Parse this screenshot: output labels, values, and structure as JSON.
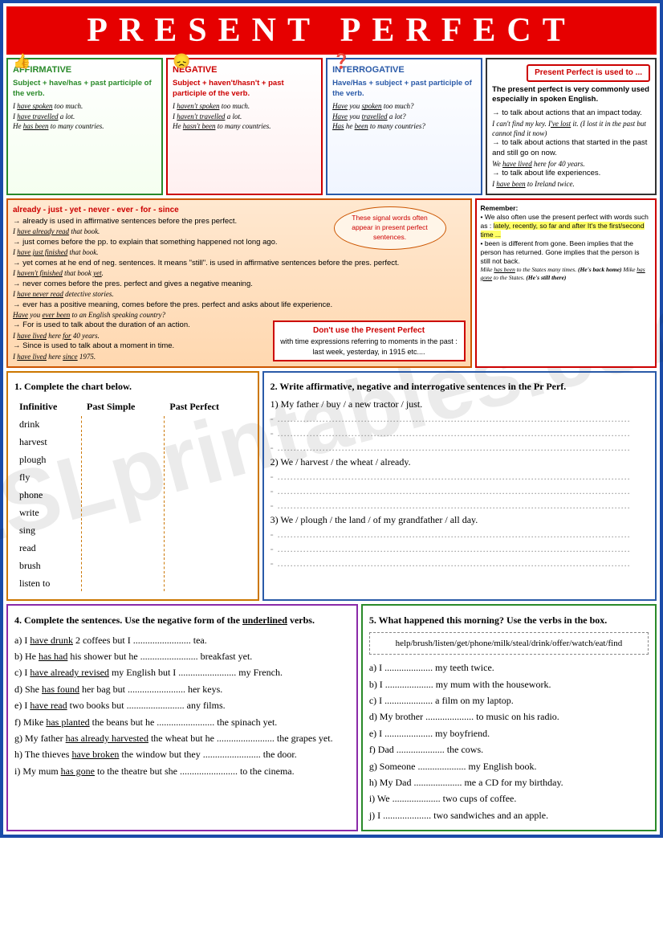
{
  "title": "PRESENT PERFECT",
  "forms": {
    "affirmative": {
      "header": "AFFIRMATIVE",
      "formula": "Subject + have/has + past participle of the verb.",
      "ex1": "I have spoken too much.",
      "ex2": "I have travelled a lot.",
      "ex3": "He has been to many countries.",
      "icon": "👍"
    },
    "negative": {
      "header": "NEGATIVE",
      "formula": "Subject + haven't/hasn't + past participle of the verb.",
      "ex1": "I haven't spoken too much.",
      "ex2": "I haven't travelled a lot.",
      "ex3": "He hasn't been to many countries.",
      "icon": "😞"
    },
    "interrogative": {
      "header": "INTERROGATIVE",
      "formula": "Have/Has + subject + past participle of the verb.",
      "ex1": "Have you spoken too much?",
      "ex2": "Have you travelled a lot?",
      "ex3": "Has he been to many countries?",
      "icon": "❓"
    }
  },
  "usage": {
    "pill": "Present Perfect is used to ...",
    "intro": "The present perfect is very commonly used especially in spoken English.",
    "u1": "→ to talk about actions that an impact today.",
    "u1ex": "I can't find my key. I've lost it. (I lost it in the past but cannot find it now)",
    "u2": "→ to talk about actions that started in the past and still go on now.",
    "u2ex": "We have lived here for 40 years.",
    "u3": "→ to talk about life experiences.",
    "u3ex": "I have been to Ireland twice."
  },
  "signal": {
    "title": "already - just - yet - never - ever - for - since",
    "l1": "→ already is used in affirmative sentences before the pres perfect.",
    "l1ex": "I have already read that book.",
    "l2": "→ just comes before the pp. to explain that something happened not long ago.",
    "l2ex": "I have just finished that book.",
    "l3": "→ yet comes at he end of neg. sentences. It means \"still\". is used in affirmative sentences before the pres. perfect.",
    "l3ex": "I haven't finished that book yet.",
    "l4": "→ never comes before the pres. perfect and gives a negative meaning.",
    "l4ex": "I have never read detective stories.",
    "l5": "→ ever has a positive meaning, comes before the pres. perfect and asks about life experience.",
    "l5ex": "Have you ever been to an English speaking country?",
    "l6": "→ For is used to talk about the duration of an action.",
    "l6ex": "I have lived here for 40 years.",
    "l7": "→ Since is used to talk about a moment in time.",
    "l7ex": "I have lived here since 1975.",
    "callout": "These signal words often appear in present perfect sentences."
  },
  "dont": {
    "title": "Don't use the Present Perfect",
    "text": "with time expressions referring to moments in the past : last week, yesterday, in 1915 etc...."
  },
  "remember": {
    "title": "Remember:",
    "l1": "• We also often use the present perfect with words such as : lately, recently, so far and after It's the first/second time ...",
    "l2": "• been is different from gone. Been implies that the person has returned. Gone implies that the person is still not back.",
    "l3a": "Mike has been to the States many times. (He's back home)",
    "l3b": "Mike has gone to the States. (He's still there)"
  },
  "ex1": {
    "title": "1. Complete the chart below.",
    "h1": "Infinitive",
    "h2": "Past Simple",
    "h3": "Past Perfect",
    "verbs": [
      "drink",
      "harvest",
      "plough",
      "fly",
      "phone",
      "write",
      "sing",
      "read",
      "brush",
      "listen to"
    ]
  },
  "ex2": {
    "title": "2. Write affirmative, negative and interrogative sentences in the Pr Perf.",
    "p1": "1) My father / buy / a new tractor / just.",
    "p2": "2) We / harvest / the wheat / already.",
    "p3": "3) We / plough / the land / of my grandfather / all day."
  },
  "ex4": {
    "title": "4. Complete the sentences. Use the negative form of the underlined verbs.",
    "a": "a) I have drunk 2 coffees but I ........................ tea.",
    "b": "b) He has had his shower but he ........................ breakfast yet.",
    "c": "c) I have already revised my English but I ........................ my French.",
    "d": "d) She has found her bag but ........................ her keys.",
    "e": "e) I have read two books but ........................ any films.",
    "f": "f) Mike has planted the beans but he ........................ the spinach yet.",
    "g": "g) My father has already harvested the wheat but he ........................ the grapes yet.",
    "h": "h) The thieves have broken the window but they ........................ the door.",
    "i": "i) My mum has gone to the theatre but she ........................ to the cinema."
  },
  "ex5": {
    "title": "5. What happened this morning? Use the verbs in the box.",
    "verbs": "help/brush/listen/get/phone/milk/steal/drink/offer/watch/eat/find",
    "a": "a) I .................... my teeth twice.",
    "b": "b) I .................... my mum with the housework.",
    "c": "c) I .................... a film on my laptop.",
    "d": "d) My brother .................... to music on his radio.",
    "e": "e) I .................... my boyfriend.",
    "f": "f) Dad .................... the cows.",
    "g": "g) Someone .................... my English book.",
    "h": "h) My Dad .................... me a CD for my birthday.",
    "i": "i) We .................... two cups of coffee.",
    "j": "j) I .................... two sandwiches and an apple."
  },
  "colors": {
    "title_bg": "#e60000",
    "border": "#1a4ba8",
    "green": "#2a8a2a",
    "red": "#cc0000",
    "blue": "#2a5aa8",
    "orange": "#cc5500",
    "purple": "#8a2aa8"
  }
}
